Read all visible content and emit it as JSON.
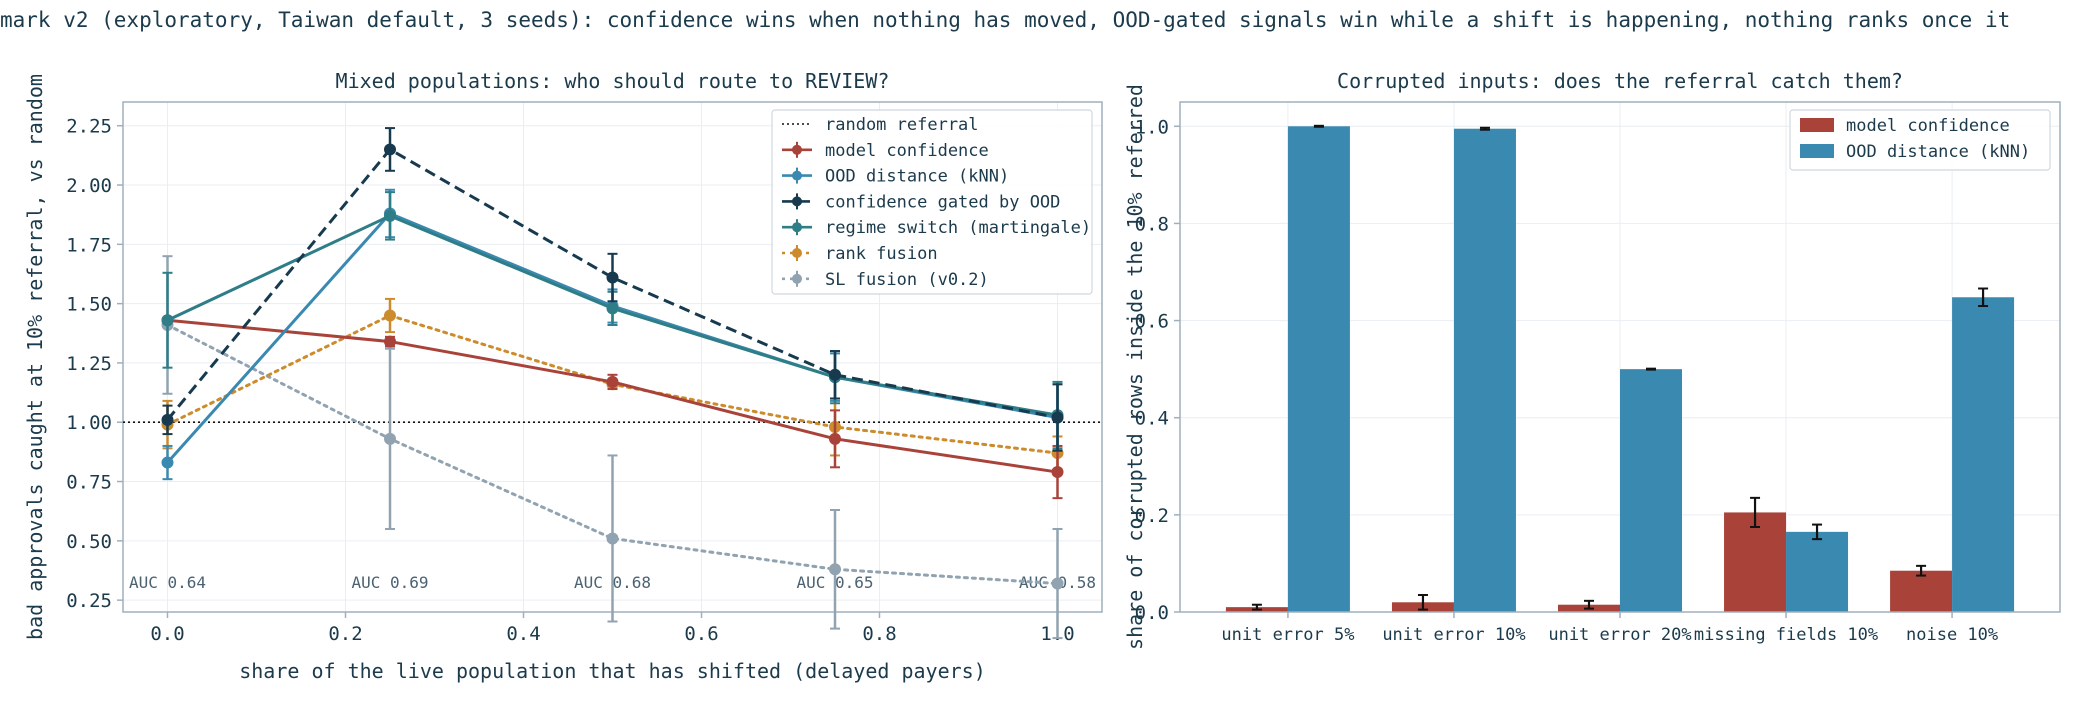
{
  "suptitle": "mark v2 (exploratory, Taiwan default, 3 seeds): confidence wins when nothing has moved, OOD-gated signals win while a shift is happening, nothing ranks once it",
  "colors": {
    "text": "#1b3a4b",
    "axis": "#9fb0bd",
    "grid": "#e9eef2",
    "model_confidence": "#a9433a",
    "ood_distance": "#3a89b1",
    "confidence_gated": "#173a4f",
    "regime_switch": "#2e7d87",
    "rank_fusion": "#cc8b2c",
    "sl_fusion": "#91a3b0",
    "auc_text": "#4a6272"
  },
  "chart_data": [
    {
      "type": "line",
      "title": "Mixed populations: who should route to REVIEW?",
      "xlabel": "share of the live population that has shifted (delayed payers)",
      "ylabel": "bad approvals caught at 10% referral, vs random",
      "xlim": [
        -0.05,
        1.05
      ],
      "ylim": [
        0.2,
        2.35
      ],
      "xticks": [
        "0.0",
        "0.2",
        "0.4",
        "0.6",
        "0.8",
        "1.0"
      ],
      "xtick_values": [
        0.0,
        0.2,
        0.4,
        0.6,
        0.8,
        1.0
      ],
      "yticks": [
        "0.25",
        "0.50",
        "0.75",
        "1.00",
        "1.25",
        "1.50",
        "1.75",
        "2.00",
        "2.25"
      ],
      "ytick_values": [
        0.25,
        0.5,
        0.75,
        1.0,
        1.25,
        1.5,
        1.75,
        2.0,
        2.25
      ],
      "grid": true,
      "legend": "top-right",
      "reference_line": {
        "name": "random referral",
        "y": 1.0
      },
      "x": [
        0.0,
        0.25,
        0.5,
        0.75,
        1.0
      ],
      "series": [
        {
          "name": "model confidence",
          "key": "model_confidence",
          "style": "solid",
          "values": [
            1.43,
            1.34,
            1.17,
            0.93,
            0.79
          ],
          "err": [
            0.0,
            0.02,
            0.03,
            0.12,
            0.11
          ]
        },
        {
          "name": "OOD distance (kNN)",
          "key": "ood_distance",
          "style": "solid",
          "values": [
            0.83,
            1.88,
            1.49,
            1.19,
            1.02
          ],
          "err": [
            0.07,
            0.1,
            0.07,
            0.1,
            0.14
          ]
        },
        {
          "name": "confidence gated by OOD",
          "key": "confidence_gated",
          "style": "dashed",
          "values": [
            1.01,
            2.15,
            1.61,
            1.2,
            1.02
          ],
          "err": [
            0.06,
            0.09,
            0.1,
            0.1,
            0.14
          ]
        },
        {
          "name": "regime switch (martingale)",
          "key": "regime_switch",
          "style": "solid",
          "values": [
            1.43,
            1.87,
            1.48,
            1.19,
            1.03
          ],
          "err": [
            0.2,
            0.1,
            0.07,
            0.11,
            0.14
          ]
        },
        {
          "name": "rank fusion",
          "key": "rank_fusion",
          "style": "dotted",
          "values": [
            0.99,
            1.45,
            1.16,
            0.98,
            0.87
          ],
          "err": [
            0.1,
            0.07,
            0.02,
            0.12,
            0.07
          ]
        },
        {
          "name": "SL fusion (v0.2)",
          "key": "sl_fusion",
          "style": "dotted",
          "values": [
            1.41,
            0.93,
            0.51,
            0.38,
            0.32
          ],
          "err": [
            0.29,
            0.38,
            0.35,
            0.25,
            0.23
          ]
        }
      ],
      "annotations": [
        {
          "x": 0.0,
          "text": "AUC 0.64"
        },
        {
          "x": 0.25,
          "text": "AUC 0.69"
        },
        {
          "x": 0.5,
          "text": "AUC 0.68"
        },
        {
          "x": 0.75,
          "text": "AUC 0.65"
        },
        {
          "x": 1.0,
          "text": "AUC 0.58"
        }
      ]
    },
    {
      "type": "bar",
      "title": "Corrupted inputs: does the referral catch them?",
      "xlabel": "",
      "ylabel": "share of corrupted rows inside the 10% referred",
      "ylim": [
        0,
        1.05
      ],
      "yticks": [
        "0.0",
        "0.2",
        "0.4",
        "0.6",
        "0.8",
        "1.0"
      ],
      "ytick_values": [
        0.0,
        0.2,
        0.4,
        0.6,
        0.8,
        1.0
      ],
      "grid": true,
      "legend": "top-right",
      "categories": [
        "unit error 5%",
        "unit error 10%",
        "unit error 20%",
        "missing fields 10%",
        "noise 10%"
      ],
      "series": [
        {
          "name": "model confidence",
          "key": "model_confidence",
          "values": [
            0.01,
            0.02,
            0.015,
            0.205,
            0.085
          ],
          "err": [
            0.005,
            0.015,
            0.008,
            0.03,
            0.01
          ]
        },
        {
          "name": "OOD distance (kNN)",
          "key": "ood_distance",
          "values": [
            1.0,
            0.995,
            0.5,
            0.165,
            0.648
          ],
          "err": [
            0.001,
            0.002,
            0.001,
            0.015,
            0.018
          ]
        }
      ]
    }
  ]
}
